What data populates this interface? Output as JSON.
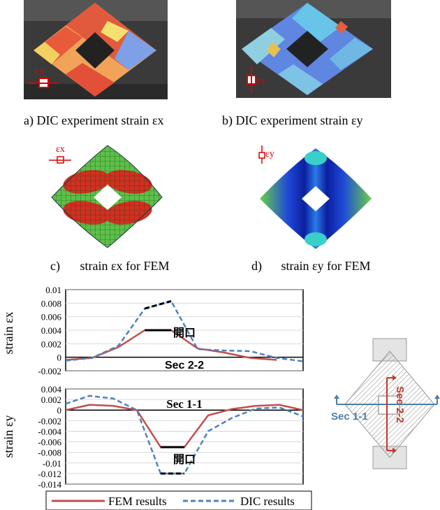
{
  "panels": {
    "a": {
      "caption": "a) DIC experiment strain εx"
    },
    "b": {
      "caption": "b) DIC experiment strain εy"
    },
    "c": {
      "letter": "c)",
      "caption": "strain εx for FEM"
    },
    "d": {
      "letter": "d)",
      "caption": "strain εy for FEM"
    },
    "insets": {
      "ex_symbol": "εx",
      "ey_symbol": "εy"
    }
  },
  "diagram": {
    "sec11": "Sec 1-1",
    "sec22": "Sec 2-2",
    "colors": {
      "hatch": "#9a9a9a",
      "sec11": "#4a7fa8",
      "sec22": "#c0392b"
    }
  },
  "chart_data": [
    {
      "type": "line",
      "ylabel": "strain εx",
      "annotation_opening": "開口",
      "annotation_section": "Sec 2-2",
      "ylim": [
        -0.002,
        0.01
      ],
      "yticks": [
        "0.01",
        "0.008",
        "0.006",
        "0.004",
        "0.002",
        "0",
        "-0.002"
      ],
      "x": [
        0,
        1,
        2,
        3,
        4,
        5,
        6,
        7,
        8,
        9
      ],
      "series": [
        {
          "name": "FEM results",
          "values": [
            -0.0004,
            -0.0001,
            0.0015,
            0.004,
            0.004,
            0.0013,
            0.0007,
            -0.0001,
            -0.0004,
            null
          ],
          "color": "#c0504d"
        },
        {
          "name": "DIC results",
          "values": [
            -0.0005,
            -0.0001,
            0.0017,
            0.0072,
            0.0083,
            0.0012,
            0.001,
            0.0009,
            -0.0001,
            -0.0006
          ],
          "color": "#4f81bd"
        }
      ]
    },
    {
      "type": "line",
      "ylabel": "strain εy",
      "annotation_opening": "開口",
      "annotation_section": "Sec 1-1",
      "ylim": [
        -0.014,
        0.004
      ],
      "yticks": [
        "0.004",
        "0.002",
        "0",
        "-0.002",
        "-0.004",
        "-0.006",
        "-0.008",
        "-0.01",
        "-0.012",
        "-0.014"
      ],
      "x": [
        0,
        1,
        2,
        3,
        4,
        5,
        6,
        7,
        8,
        9,
        10
      ],
      "series": [
        {
          "name": "FEM results",
          "values": [
            0,
            0.001,
            0.0008,
            0,
            -0.007,
            -0.007,
            -0.001,
            0.0002,
            0.0008,
            0.001,
            0
          ],
          "color": "#c0504d"
        },
        {
          "name": "DIC results",
          "values": [
            0.0012,
            0.0027,
            0.0022,
            0,
            -0.012,
            -0.012,
            -0.004,
            -0.0015,
            0.0003,
            0.0005,
            -0.0012
          ],
          "color": "#4f81bd"
        }
      ]
    }
  ],
  "legend": {
    "fem": "FEM results",
    "dic": "DIC results"
  }
}
